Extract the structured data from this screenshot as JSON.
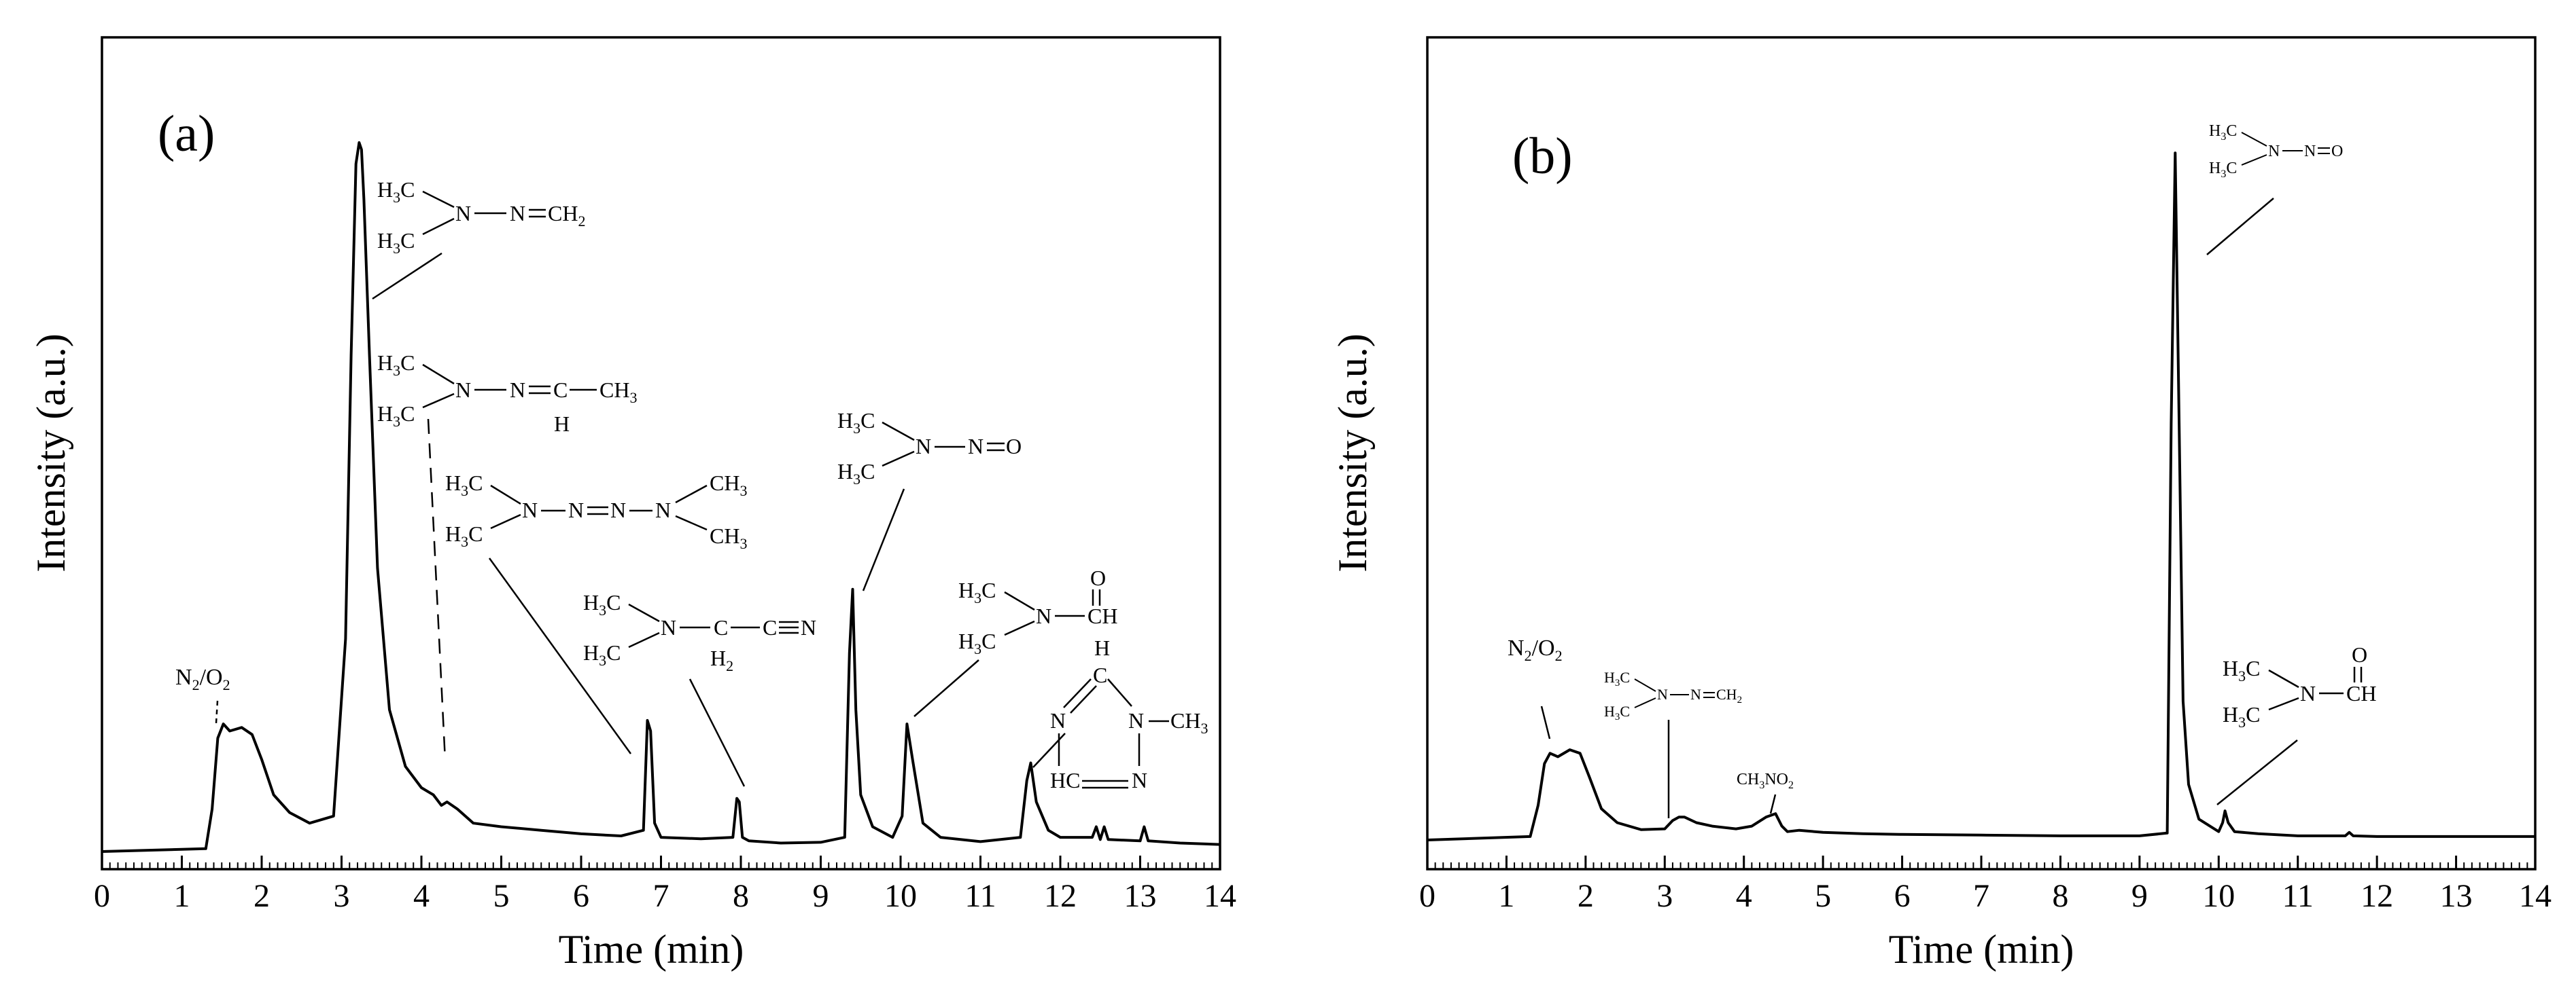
{
  "figure": {
    "panels": [
      {
        "panel_label": "(a)",
        "xlabel": "Time (min)",
        "ylabel": "Intensity (a.u.)",
        "annotations": [
          "N2/O2",
          "(CH3)2N-N=CH2",
          "(CH3)2N-N=CH-CH3",
          "(CH3)2N-N=N-N(CH3)2",
          "(CH3)2N-CH2-C≡N",
          "(CH3)2N-N=O",
          "(CH3)2N-CHO",
          "1-methyl-1,2,4-triazole"
        ]
      },
      {
        "panel_label": "(b)",
        "xlabel": "Time (min)",
        "ylabel": "Intensity (a.u.)",
        "annotations": [
          "N2/O2",
          "(CH3)2N-N=CH2",
          "CH3NO2",
          "(CH3)2N-N=O",
          "(CH3)2N-CHO"
        ]
      }
    ]
  },
  "chart_data": [
    {
      "type": "line",
      "panel": "(a)",
      "xlabel": "Time (min)",
      "ylabel": "Intensity (a.u.)",
      "xlim": [
        0,
        14
      ],
      "ylim": [
        0,
        100
      ],
      "x_ticks": [
        "0",
        "1",
        "2",
        "3",
        "4",
        "5",
        "6",
        "7",
        "8",
        "9",
        "10",
        "11",
        "12",
        "13",
        "14"
      ],
      "series": [
        {
          "x": [
            0,
            1.3,
            1.38,
            1.45,
            1.52,
            1.6,
            1.75,
            1.88,
            2.0,
            2.15,
            2.35,
            2.6,
            2.9,
            3.05,
            3.12,
            3.18,
            3.22,
            3.25,
            3.28,
            3.35,
            3.45,
            3.6,
            3.8,
            4.0,
            4.15,
            4.25,
            4.32,
            4.45,
            4.65,
            5.0,
            5.5,
            6.0,
            6.5,
            6.78,
            6.83,
            6.87,
            6.92,
            7.0,
            7.5,
            7.9,
            7.95,
            7.98,
            8.02,
            8.1,
            8.5,
            9.0,
            9.3,
            9.36,
            9.4,
            9.44,
            9.5,
            9.65,
            9.9,
            10.02,
            10.08,
            10.15,
            10.28,
            10.5,
            11.0,
            11.5,
            11.58,
            11.63,
            11.7,
            11.85,
            12.0,
            12.4,
            12.45,
            12.5,
            12.55,
            12.6,
            13.0,
            13.05,
            13.1,
            13.5,
            14.0
          ],
          "y": [
            0,
            0.4,
            6,
            16,
            18,
            17,
            17.5,
            16.5,
            13,
            8,
            5.5,
            4,
            5,
            30,
            70,
            97,
            100,
            99,
            92,
            70,
            40,
            20,
            12,
            9,
            8,
            6.5,
            7,
            6,
            4,
            3.5,
            3,
            2.5,
            2.2,
            3,
            18.5,
            17,
            4,
            2,
            1.8,
            2,
            7.5,
            7,
            2,
            1.5,
            1.2,
            1.3,
            2,
            28,
            37,
            20,
            8,
            3.5,
            2,
            5,
            18,
            13,
            4,
            2,
            1.4,
            2,
            10,
            12.5,
            7,
            3,
            2,
            2,
            3.5,
            1.7,
            3.5,
            1.7,
            1.5,
            3.5,
            1.5,
            1.2,
            1.0
          ]
        }
      ]
    },
    {
      "type": "line",
      "panel": "(b)",
      "xlabel": "Time (min)",
      "ylabel": "Intensity (a.u.)",
      "xlim": [
        0,
        14
      ],
      "ylim": [
        0,
        100
      ],
      "x_ticks": [
        "0",
        "1",
        "2",
        "3",
        "4",
        "5",
        "6",
        "7",
        "8",
        "9",
        "10",
        "11",
        "12",
        "13",
        "14"
      ],
      "series": [
        {
          "x": [
            0,
            1.3,
            1.4,
            1.48,
            1.55,
            1.65,
            1.8,
            1.93,
            2.05,
            2.2,
            2.4,
            2.7,
            3.0,
            3.1,
            3.18,
            3.25,
            3.4,
            3.6,
            3.9,
            4.1,
            4.28,
            4.4,
            4.48,
            4.55,
            4.7,
            5.0,
            5.5,
            6.0,
            7.0,
            8.0,
            9.0,
            9.35,
            9.4,
            9.45,
            9.5,
            9.55,
            9.62,
            9.75,
            10.0,
            10.05,
            10.08,
            10.12,
            10.2,
            10.5,
            11.0,
            11.6,
            11.65,
            11.7,
            12.0,
            13.0,
            14.0
          ],
          "y": [
            0,
            0.5,
            5,
            11,
            12.5,
            12,
            13,
            12.5,
            9,
            4.5,
            2.5,
            1.5,
            1.6,
            2.8,
            3.3,
            3.3,
            2.5,
            2,
            1.6,
            2,
            3.3,
            3.8,
            2,
            1.2,
            1.4,
            1.1,
            0.9,
            0.8,
            0.7,
            0.6,
            0.6,
            1,
            60,
            99,
            60,
            20,
            8,
            3,
            1.2,
            2.5,
            4.2,
            2.5,
            1.2,
            0.9,
            0.6,
            0.6,
            1.1,
            0.6,
            0.5,
            0.5,
            0.5
          ]
        }
      ]
    }
  ]
}
